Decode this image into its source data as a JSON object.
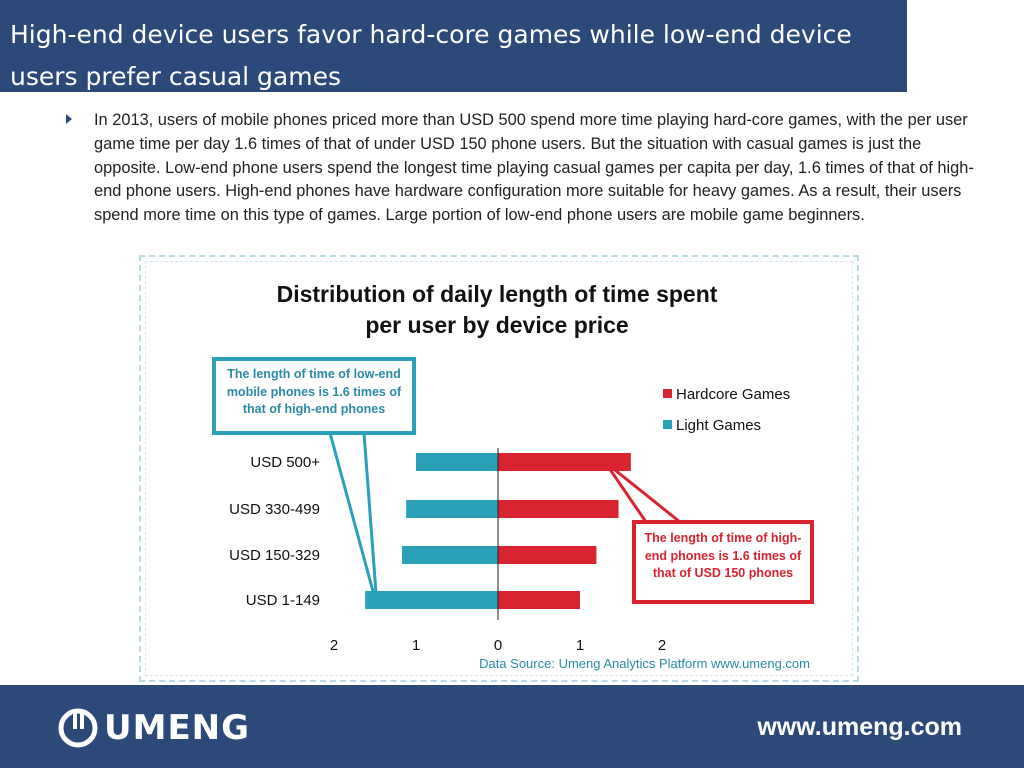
{
  "slide": {
    "title": "High-end device users favor hard-core games while low-end device users prefer casual games",
    "bullet": "In 2013, users of mobile phones priced more than USD 500 spend more time playing hard-core games, with the per user game time per day 1.6 times of that of under USD 150 phone users. But the situation with casual games is just the opposite. Low-end phone users spend the longest time playing casual games per capita per day, 1.6 times of that of high-end phone users. High-end phones have hardware configuration more suitable for heavy games. As a result, their users spend more time on this type of games. Large portion of low-end phone users are mobile game beginners."
  },
  "chart_data": {
    "type": "bar",
    "orientation": "horizontal-diverging",
    "title": "Distribution of daily length of time spent per user by device price",
    "categories": [
      "USD 500+",
      "USD 330-499",
      "USD 150-329",
      "USD 1-149"
    ],
    "series": [
      {
        "name": "Hardcore Games",
        "color": "#d9232e",
        "values": [
          1.62,
          1.47,
          1.2,
          1.0
        ],
        "side": "right"
      },
      {
        "name": "Light Games",
        "color": "#2aa1b9",
        "values": [
          1.0,
          1.12,
          1.17,
          1.62
        ],
        "side": "left"
      }
    ],
    "x_ticks": [
      "2",
      "1",
      "0",
      "1",
      "2"
    ],
    "xlim": [
      -2,
      2
    ],
    "legend_position": "top-right",
    "grid": false,
    "source": "Data Source: Umeng Analytics Platform www.umeng.com",
    "annotations": {
      "low_end": "The length of time of low-end mobile phones is 1.6 times of that of high-end phones",
      "high_end": "The length of time of high-end phones is 1.6 times of that of USD 150 phones"
    }
  },
  "footer": {
    "logo": "UMENG",
    "url": "www.umeng.com",
    "bar_color": "#2b4a7a"
  }
}
